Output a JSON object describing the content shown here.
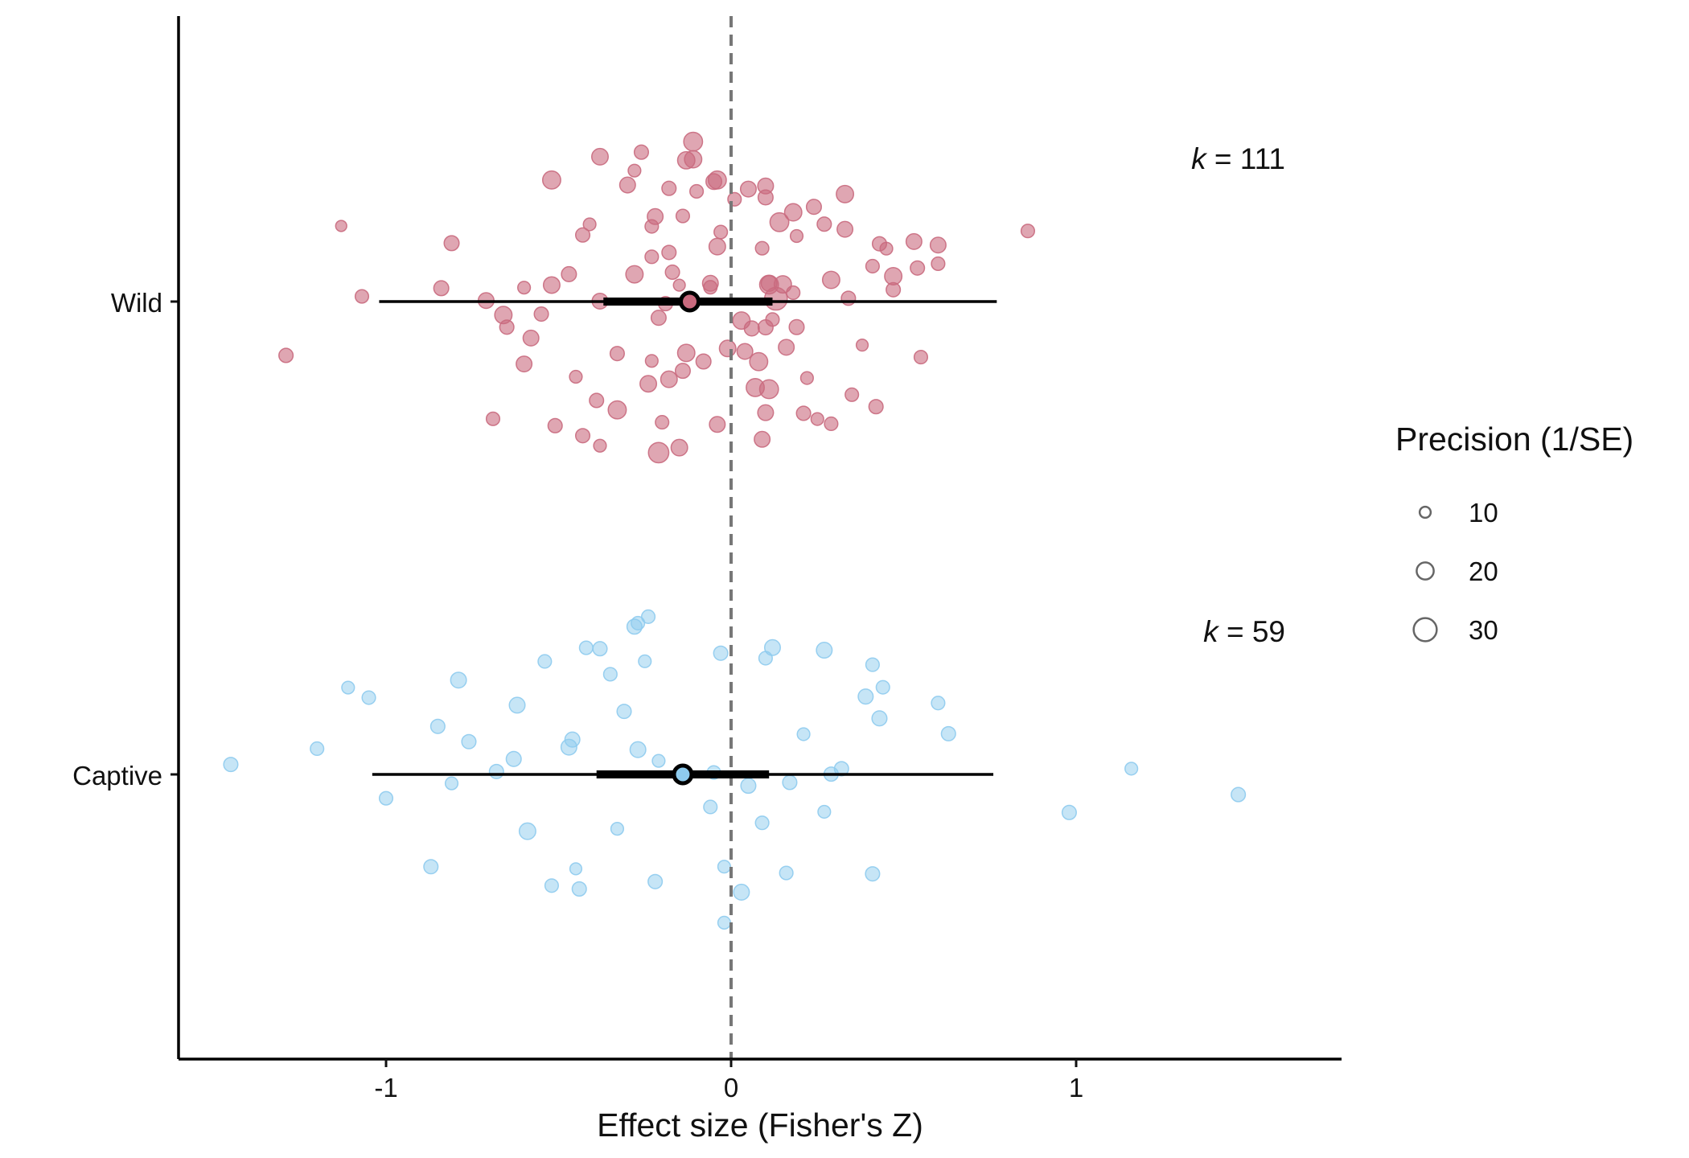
{
  "chart_data": {
    "type": "scatter",
    "subtype": "orchard-plot",
    "xlabel": "Effect size (Fisher's Z)",
    "ylabel": "",
    "xlim": [
      -1.6,
      1.8
    ],
    "xticks": [
      -1,
      0,
      1
    ],
    "xtick_labels": [
      "-1",
      "0",
      "1"
    ],
    "grid": false,
    "reference_line": {
      "x": 0,
      "style": "dashed",
      "color": "#777777"
    },
    "legend": {
      "title": "Precision (1/SE)",
      "placement": "right",
      "entries": [
        {
          "label": "10",
          "precision": 10
        },
        {
          "label": "20",
          "precision": 20
        },
        {
          "label": "30",
          "precision": 30
        }
      ]
    },
    "groups": [
      {
        "name": "Wild",
        "k_prefix": "k",
        "k_text": " = 111",
        "color": "#c96a7e",
        "estimate": -0.12,
        "ci": [
          -0.37,
          0.12
        ],
        "pi": [
          -1.02,
          0.77
        ],
        "points": [
          [
            0.13,
            21
          ],
          [
            0.03,
            14
          ],
          [
            0.1,
            12
          ],
          [
            -0.14,
            9
          ],
          [
            0.11,
            16
          ],
          [
            -0.19,
            10
          ],
          [
            -0.28,
            8
          ],
          [
            -0.04,
            12
          ],
          [
            0.19,
            11
          ],
          [
            -0.17,
            10
          ],
          [
            -0.03,
            9
          ],
          [
            0.07,
            15
          ],
          [
            0.16,
            12
          ],
          [
            -0.11,
            14
          ],
          [
            -0.38,
            12
          ],
          [
            -0.22,
            12
          ],
          [
            -0.33,
            10
          ],
          [
            0.24,
            11
          ],
          [
            0.12,
            9
          ],
          [
            0.34,
            10
          ],
          [
            0.01,
            9
          ],
          [
            -0.52,
            15
          ],
          [
            -0.15,
            13
          ],
          [
            -0.43,
            10
          ],
          [
            -0.3,
            12
          ],
          [
            -0.06,
            12
          ],
          [
            0.09,
            12
          ],
          [
            0.18,
            14
          ],
          [
            0.29,
            14
          ],
          [
            -0.21,
            11
          ],
          [
            0.38,
            7
          ],
          [
            0.45,
            8
          ],
          [
            -0.1,
            9
          ],
          [
            -0.69,
            9
          ],
          [
            -0.6,
            8
          ],
          [
            -0.41,
            8
          ],
          [
            -0.55,
            10
          ],
          [
            -0.04,
            13
          ],
          [
            0.1,
            11
          ],
          [
            0.22,
            8
          ],
          [
            0.54,
            10
          ],
          [
            -0.18,
            10
          ],
          [
            -0.13,
            14
          ],
          [
            0.42,
            10
          ],
          [
            0.6,
            12
          ],
          [
            -1.29,
            10
          ],
          [
            -1.07,
            9
          ],
          [
            -0.81,
            11
          ],
          [
            -0.65,
            10
          ],
          [
            -0.47,
            11
          ],
          [
            -0.24,
            13
          ],
          [
            -0.13,
            14
          ],
          [
            0.05,
            12
          ],
          [
            0.33,
            12
          ],
          [
            0.47,
            10
          ],
          [
            0.86,
            9
          ],
          [
            -1.13,
            6
          ],
          [
            -0.28,
            14
          ],
          [
            -0.08,
            11
          ],
          [
            -0.01,
            13
          ],
          [
            0.29,
            9
          ],
          [
            0.6,
            9
          ],
          [
            -0.84,
            11
          ],
          [
            -0.71,
            12
          ],
          [
            -0.52,
            13
          ],
          [
            -0.39,
            10
          ],
          [
            -0.15,
            7
          ],
          [
            0.11,
            12
          ],
          [
            0.43,
            10
          ],
          [
            0.53,
            12
          ],
          [
            -0.6,
            12
          ],
          [
            -0.05,
            12
          ],
          [
            0.19,
            8
          ],
          [
            -0.45,
            8
          ],
          [
            -0.33,
            15
          ],
          [
            -0.21,
            18
          ],
          [
            0.25,
            8
          ],
          [
            0.35,
            9
          ],
          [
            0.55,
            9
          ],
          [
            -0.58,
            12
          ],
          [
            -0.66,
            14
          ],
          [
            -0.11,
            16
          ],
          [
            0.09,
            9
          ],
          [
            0.41,
            9
          ],
          [
            0.27,
            10
          ],
          [
            0.47,
            14
          ],
          [
            -0.23,
            8
          ],
          [
            -0.18,
            13
          ],
          [
            -0.43,
            10
          ],
          [
            -0.51,
            10
          ],
          [
            -0.38,
            13
          ],
          [
            -0.23,
            9
          ],
          [
            0.1,
            11
          ],
          [
            0.15,
            14
          ],
          [
            0.33,
            14
          ],
          [
            -0.38,
            8
          ],
          [
            -0.06,
            9
          ],
          [
            -0.2,
            9
          ],
          [
            0.06,
            11
          ],
          [
            0.18,
            9
          ],
          [
            -0.04,
            15
          ],
          [
            0.11,
            16
          ],
          [
            0.21,
            10
          ],
          [
            -0.23,
            9
          ],
          [
            -0.26,
            10
          ],
          [
            -0.18,
            10
          ],
          [
            -0.14,
            11
          ],
          [
            0.08,
            15
          ],
          [
            0.04,
            12
          ],
          [
            0.1,
            12
          ],
          [
            0.14,
            16
          ]
        ]
      },
      {
        "name": "Captive",
        "k_prefix": "k",
        "k_text": " = 59",
        "color": "#8ecbee",
        "estimate": -0.14,
        "ci": [
          -0.39,
          0.11
        ],
        "pi": [
          -1.04,
          0.76
        ],
        "points": [
          [
            -0.22,
            10
          ],
          [
            -0.35,
            9
          ],
          [
            0.27,
            12
          ],
          [
            -0.54,
            9
          ],
          [
            -0.27,
            9
          ],
          [
            0.05,
            11
          ],
          [
            -0.45,
            7
          ],
          [
            0.16,
            9
          ],
          [
            -0.25,
            8
          ],
          [
            -0.05,
            9
          ],
          [
            0.41,
            9
          ],
          [
            -0.85,
            10
          ],
          [
            -0.68,
            10
          ],
          [
            -0.42,
            9
          ],
          [
            0.21,
            8
          ],
          [
            -0.62,
            12
          ],
          [
            -0.31,
            10
          ],
          [
            -0.02,
            8
          ],
          [
            0.44,
            9
          ],
          [
            0.6,
            9
          ],
          [
            -1.11,
            8
          ],
          [
            -1.0,
            9
          ],
          [
            -0.79,
            12
          ],
          [
            -0.47,
            12
          ],
          [
            0.1,
            9
          ],
          [
            0.32,
            10
          ],
          [
            -1.45,
            10
          ],
          [
            -0.24,
            9
          ],
          [
            0.98,
            10
          ],
          [
            1.16,
            8
          ],
          [
            1.47,
            10
          ],
          [
            -1.2,
            9
          ],
          [
            -0.87,
            10
          ],
          [
            -0.59,
            13
          ],
          [
            0.27,
            8
          ],
          [
            0.43,
            11
          ],
          [
            -0.76,
            10
          ],
          [
            -0.38,
            10
          ],
          [
            0.03,
            12
          ],
          [
            -1.05,
            9
          ],
          [
            0.12,
            12
          ],
          [
            0.39,
            11
          ],
          [
            0.63,
            10
          ],
          [
            -0.28,
            11
          ],
          [
            -0.06,
            9
          ],
          [
            -0.63,
            11
          ],
          [
            -0.46,
            11
          ],
          [
            -0.81,
            8
          ],
          [
            0.41,
            10
          ],
          [
            0.17,
            10
          ],
          [
            -0.27,
            12
          ],
          [
            -0.03,
            10
          ],
          [
            -0.44,
            10
          ],
          [
            0.09,
            9
          ],
          [
            0.29,
            10
          ],
          [
            -0.52,
            9
          ],
          [
            -0.33,
            8
          ],
          [
            -0.21,
            8
          ],
          [
            -0.02,
            8
          ]
        ]
      }
    ]
  }
}
